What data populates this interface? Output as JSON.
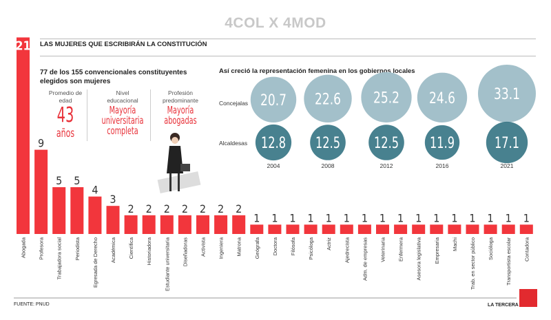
{
  "header": {
    "top_title": "4COL X 4MOD",
    "main_title": "LAS MUJERES QUE ESCRIBIRÁN LA CONSTITUCIÓN",
    "subtitle": "77 de los 155 convencionales constituyentes elegidos son mujeres"
  },
  "stats": [
    {
      "label": "Promedio de edad",
      "value": "43",
      "unit": "años"
    },
    {
      "label": "Nivel educacional",
      "value": "Mayoría universitaria completa"
    },
    {
      "label": "Profesión predominante",
      "value": "Mayoría abogadas"
    }
  ],
  "footer": {
    "source": "FUENTE: PNUD",
    "brand": "LA TERCERA",
    "logo": "LT"
  },
  "colors": {
    "bar": "#f2363c",
    "concejalas": "#a3c0ca",
    "alcaldesas": "#2f7080"
  },
  "chart_data": [
    {
      "type": "bar",
      "categories": [
        "Abogada",
        "Profesora",
        "Trabajadora social",
        "Periodista",
        "Egresada de Derecho",
        "Académica",
        "Científica",
        "Historiadora",
        "Estudiante universitaria",
        "Diseñadoras",
        "Activista",
        "Ingeniera",
        "Matrona",
        "Geógrafa",
        "Doctora",
        "Filósofa",
        "Psicóloga",
        "Actriz",
        "Ajedrecista",
        "Adm. de empresas",
        "Veterinaria",
        "Enfermera",
        "Asesora legislativa",
        "Empresaria",
        "Machi",
        "Trab. en sector público",
        "Socióloga",
        "Transportista escolar",
        "Contadora"
      ],
      "values": [
        21,
        9,
        5,
        5,
        4,
        3,
        2,
        2,
        2,
        2,
        2,
        2,
        2,
        1,
        1,
        1,
        1,
        1,
        1,
        1,
        1,
        1,
        1,
        1,
        1,
        1,
        1,
        1,
        1
      ]
    },
    {
      "type": "bubble",
      "title": "Así creció la representación femenina en los gobiernos locales",
      "categories": [
        "2004",
        "2008",
        "2012",
        "2016",
        "2021"
      ],
      "series": [
        {
          "name": "Concejalas",
          "values": [
            20.7,
            22.6,
            25.2,
            24.6,
            33.1
          ]
        },
        {
          "name": "Alcaldesas",
          "values": [
            12.8,
            12.5,
            12.5,
            11.9,
            17.1
          ]
        }
      ]
    }
  ]
}
